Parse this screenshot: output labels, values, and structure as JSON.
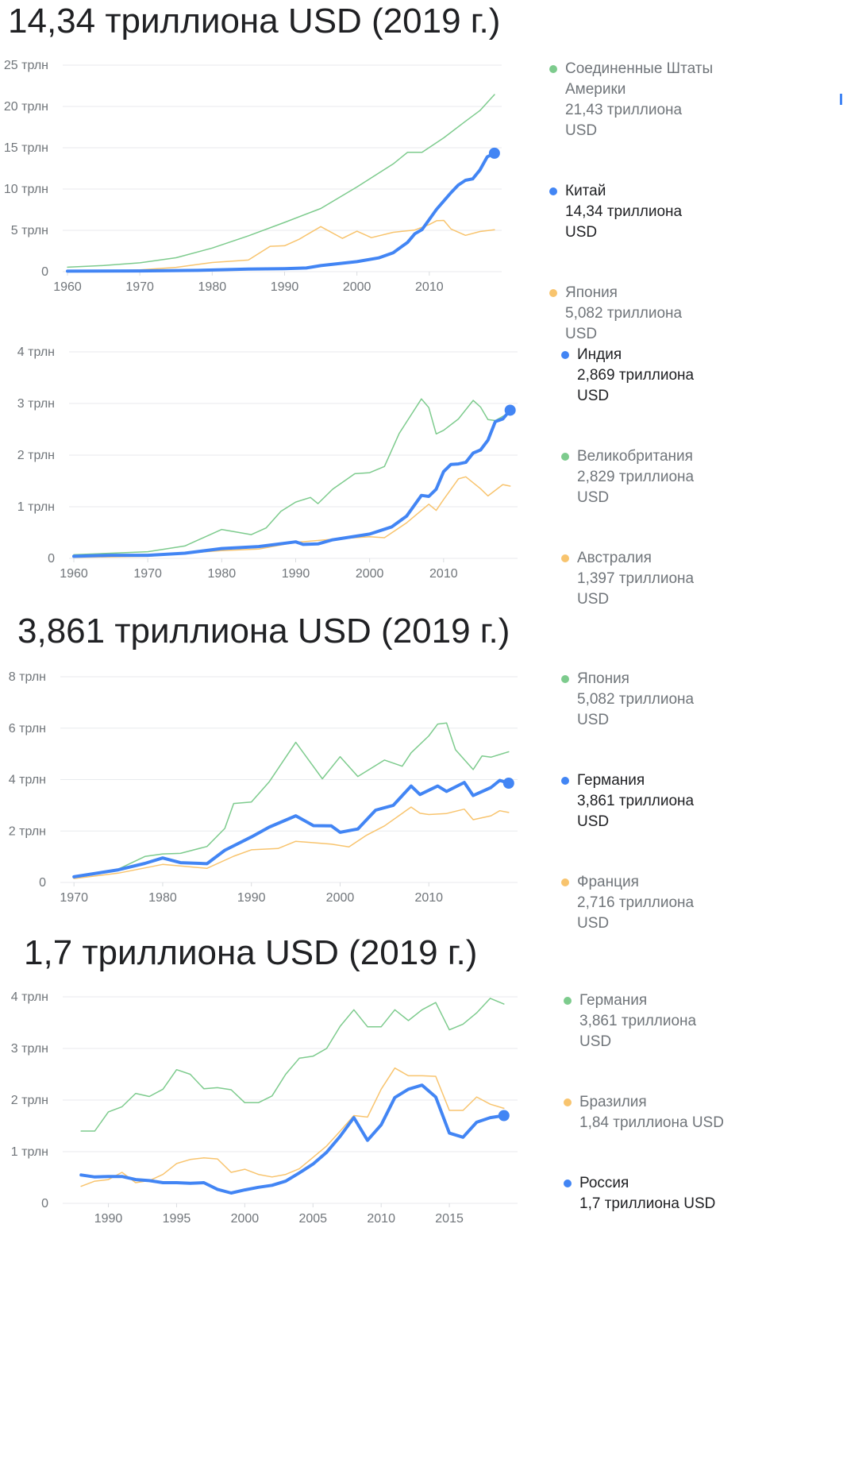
{
  "colors": {
    "blue": "#4285f4",
    "green": "#7dcb8d",
    "orange": "#f8c46e",
    "grid": "#e8eaed",
    "tick": "#70757a"
  },
  "headlines": [
    "14,34 триллиона USD (2019 г.)",
    "",
    "3,861 триллиона USD (2019 г.)",
    "1,7 триллиона USD (2019 г.)"
  ],
  "legends": [
    [
      {
        "name": "Соединенные Штаты Америки",
        "value": "21,43 триллиона USD",
        "color": "green",
        "active": false
      },
      {
        "name": "Китай",
        "value": "14,34 триллиона USD",
        "color": "blue",
        "active": true
      },
      {
        "name": "Япония",
        "value": "5,082 триллиона USD",
        "color": "orange",
        "active": false
      }
    ],
    [
      {
        "name": "Индия",
        "value": "2,869 триллиона USD",
        "color": "blue",
        "active": true
      },
      {
        "name": "Великобритания",
        "value": "2,829 триллиона USD",
        "color": "green",
        "active": false
      },
      {
        "name": "Австралия",
        "value": "1,397 триллиона USD",
        "color": "orange",
        "active": false
      }
    ],
    [
      {
        "name": "Япония",
        "value": "5,082 триллиона USD",
        "color": "green",
        "active": false
      },
      {
        "name": "Германия",
        "value": "3,861 триллиона USD",
        "color": "blue",
        "active": true
      },
      {
        "name": "Франция",
        "value": "2,716 триллиона USD",
        "color": "orange",
        "active": false
      }
    ],
    [
      {
        "name": "Германия",
        "value": "3,861 триллиона USD",
        "color": "green",
        "active": false
      },
      {
        "name": "Бразилия",
        "value": "1,84 триллиона USD",
        "color": "orange",
        "active": false
      },
      {
        "name": "Россия",
        "value": "1,7 триллиона USD",
        "color": "blue",
        "active": true
      }
    ]
  ],
  "chart_data": [
    {
      "type": "line",
      "title": "14,34 триллиона USD (2019 г.)",
      "xlim": [
        1960,
        2020
      ],
      "ylim": [
        0,
        25
      ],
      "x_ticks": [
        1960,
        1970,
        1980,
        1990,
        2000,
        2010
      ],
      "y_ticks": [
        {
          "v": 0,
          "label": "0"
        },
        {
          "v": 5,
          "label": "5 трлн"
        },
        {
          "v": 10,
          "label": "10 трлн"
        },
        {
          "v": 15,
          "label": "15 трлн"
        },
        {
          "v": 20,
          "label": "20 трлн"
        },
        {
          "v": 25,
          "label": "25 трлн"
        }
      ],
      "grid": true,
      "legend": "right",
      "series": [
        {
          "name": "Соединенные Штаты Америки",
          "color": "green",
          "highlight": false,
          "x": [
            1960,
            1965,
            1970,
            1975,
            1980,
            1985,
            1990,
            1995,
            2000,
            2005,
            2007,
            2009,
            2012,
            2015,
            2017,
            2019
          ],
          "y": [
            0.54,
            0.74,
            1.07,
            1.68,
            2.86,
            4.34,
            5.96,
            7.64,
            10.25,
            13.04,
            14.45,
            14.45,
            16.2,
            18.2,
            19.5,
            21.43
          ]
        },
        {
          "name": "Япония",
          "color": "orange",
          "highlight": false,
          "x": [
            1960,
            1965,
            1970,
            1975,
            1980,
            1985,
            1988,
            1990,
            1992,
            1995,
            1998,
            2000,
            2002,
            2005,
            2008,
            2010,
            2011,
            2012,
            2013,
            2015,
            2017,
            2019
          ],
          "y": [
            0.04,
            0.09,
            0.21,
            0.52,
            1.11,
            1.4,
            3.07,
            3.13,
            3.91,
            5.45,
            4.03,
            4.89,
            4.12,
            4.76,
            5.04,
            5.7,
            6.16,
            6.2,
            5.16,
            4.39,
            4.86,
            5.08
          ]
        },
        {
          "name": "Китай",
          "color": "blue",
          "highlight": true,
          "x": [
            1960,
            1970,
            1978,
            1985,
            1990,
            1993,
            1995,
            2000,
            2003,
            2005,
            2007,
            2008,
            2009,
            2011,
            2013,
            2014,
            2015,
            2016,
            2017,
            2018,
            2019
          ],
          "y": [
            0.06,
            0.09,
            0.15,
            0.31,
            0.36,
            0.44,
            0.73,
            1.21,
            1.66,
            2.29,
            3.55,
            4.59,
            5.1,
            7.55,
            9.57,
            10.48,
            11.06,
            11.23,
            12.31,
            13.89,
            14.34
          ]
        }
      ]
    },
    {
      "type": "line",
      "xlim": [
        1960,
        2020
      ],
      "ylim": [
        0,
        4
      ],
      "x_ticks": [
        1960,
        1970,
        1980,
        1990,
        2000,
        2010
      ],
      "y_ticks": [
        {
          "v": 0,
          "label": "0"
        },
        {
          "v": 1,
          "label": "1 трлн"
        },
        {
          "v": 2,
          "label": "2 трлн"
        },
        {
          "v": 3,
          "label": "3 трлн"
        },
        {
          "v": 4,
          "label": "4 трлн"
        }
      ],
      "grid": true,
      "legend": "right",
      "series": [
        {
          "name": "Великобритания",
          "color": "green",
          "highlight": false,
          "x": [
            1960,
            1965,
            1970,
            1975,
            1980,
            1984,
            1986,
            1988,
            1990,
            1992,
            1993,
            1995,
            1998,
            2000,
            2002,
            2004,
            2007,
            2008,
            2009,
            2010,
            2012,
            2014,
            2015,
            2016,
            2017,
            2019
          ],
          "y": [
            0.07,
            0.1,
            0.13,
            0.24,
            0.56,
            0.46,
            0.59,
            0.91,
            1.09,
            1.18,
            1.06,
            1.34,
            1.64,
            1.66,
            1.78,
            2.42,
            3.09,
            2.92,
            2.41,
            2.48,
            2.7,
            3.06,
            2.93,
            2.69,
            2.67,
            2.83
          ]
        },
        {
          "name": "Австралия",
          "color": "orange",
          "highlight": false,
          "x": [
            1960,
            1965,
            1970,
            1975,
            1980,
            1985,
            1990,
            1995,
            2000,
            2002,
            2005,
            2008,
            2009,
            2010,
            2012,
            2013,
            2015,
            2016,
            2018,
            2019
          ],
          "y": [
            0.02,
            0.03,
            0.04,
            0.1,
            0.15,
            0.18,
            0.31,
            0.37,
            0.42,
            0.4,
            0.69,
            1.05,
            0.93,
            1.14,
            1.54,
            1.58,
            1.35,
            1.21,
            1.43,
            1.4
          ]
        },
        {
          "name": "Индия",
          "color": "blue",
          "highlight": true,
          "x": [
            1960,
            1965,
            1970,
            1975,
            1980,
            1985,
            1990,
            1991,
            1993,
            1995,
            2000,
            2003,
            2005,
            2007,
            2008,
            2009,
            2010,
            2011,
            2012,
            2013,
            2014,
            2015,
            2016,
            2017,
            2018,
            2019
          ],
          "y": [
            0.04,
            0.06,
            0.06,
            0.1,
            0.19,
            0.23,
            0.32,
            0.27,
            0.28,
            0.36,
            0.47,
            0.61,
            0.82,
            1.22,
            1.2,
            1.34,
            1.68,
            1.82,
            1.83,
            1.86,
            2.04,
            2.1,
            2.29,
            2.65,
            2.7,
            2.87
          ]
        }
      ]
    },
    {
      "type": "line",
      "title": "3,861 триллиона USD (2019 г.)",
      "xlim": [
        1969,
        2020
      ],
      "ylim": [
        0,
        8
      ],
      "x_ticks": [
        1970,
        1980,
        1990,
        2000,
        2010
      ],
      "y_ticks": [
        {
          "v": 0,
          "label": "0"
        },
        {
          "v": 2,
          "label": "2 трлн"
        },
        {
          "v": 4,
          "label": "4 трлн"
        },
        {
          "v": 6,
          "label": "6 трлн"
        },
        {
          "v": 8,
          "label": "8 трлн"
        }
      ],
      "grid": true,
      "legend": "right",
      "series": [
        {
          "name": "Япония",
          "color": "green",
          "highlight": false,
          "x": [
            1970,
            1975,
            1978,
            1980,
            1982,
            1985,
            1987,
            1988,
            1990,
            1992,
            1995,
            1998,
            2000,
            2002,
            2005,
            2007,
            2008,
            2010,
            2011,
            2012,
            2013,
            2015,
            2016,
            2017,
            2019
          ],
          "y": [
            0.21,
            0.52,
            1.01,
            1.11,
            1.13,
            1.4,
            2.1,
            3.07,
            3.13,
            3.91,
            5.45,
            4.03,
            4.89,
            4.12,
            4.76,
            4.52,
            5.04,
            5.7,
            6.16,
            6.2,
            5.16,
            4.39,
            4.92,
            4.87,
            5.08
          ]
        },
        {
          "name": "Франция",
          "color": "orange",
          "highlight": false,
          "x": [
            1970,
            1975,
            1980,
            1985,
            1988,
            1990,
            1993,
            1995,
            1999,
            2001,
            2003,
            2005,
            2008,
            2009,
            2010,
            2012,
            2014,
            2015,
            2017,
            2018,
            2019
          ],
          "y": [
            0.15,
            0.36,
            0.7,
            0.55,
            1.02,
            1.27,
            1.32,
            1.6,
            1.49,
            1.38,
            1.84,
            2.2,
            2.93,
            2.69,
            2.64,
            2.68,
            2.85,
            2.44,
            2.59,
            2.79,
            2.72
          ]
        },
        {
          "name": "Германия",
          "color": "blue",
          "highlight": true,
          "x": [
            1970,
            1975,
            1978,
            1980,
            1982,
            1985,
            1987,
            1990,
            1992,
            1995,
            1997,
            1999,
            2000,
            2002,
            2004,
            2006,
            2008,
            2009,
            2011,
            2012,
            2014,
            2015,
            2017,
            2018,
            2019
          ],
          "y": [
            0.22,
            0.49,
            0.74,
            0.95,
            0.77,
            0.73,
            1.25,
            1.77,
            2.15,
            2.59,
            2.21,
            2.2,
            1.95,
            2.08,
            2.81,
            3.0,
            3.75,
            3.42,
            3.75,
            3.54,
            3.89,
            3.38,
            3.69,
            3.97,
            3.86
          ]
        }
      ]
    },
    {
      "type": "line",
      "title": "1,7 триллиона USD (2019 г.)",
      "xlim": [
        1987,
        2020
      ],
      "ylim": [
        0,
        4
      ],
      "x_ticks": [
        1990,
        1995,
        2000,
        2005,
        2010,
        2015
      ],
      "y_ticks": [
        {
          "v": 0,
          "label": "0"
        },
        {
          "v": 1,
          "label": "1 трлн"
        },
        {
          "v": 2,
          "label": "2 трлн"
        },
        {
          "v": 3,
          "label": "3 трлн"
        },
        {
          "v": 4,
          "label": "4 трлн"
        }
      ],
      "grid": true,
      "legend": "right",
      "series": [
        {
          "name": "Германия",
          "color": "green",
          "highlight": false,
          "x": [
            1988,
            1989,
            1990,
            1991,
            1992,
            1993,
            1994,
            1995,
            1996,
            1997,
            1998,
            1999,
            2000,
            2001,
            2002,
            2003,
            2004,
            2005,
            2006,
            2007,
            2008,
            2009,
            2010,
            2011,
            2012,
            2013,
            2014,
            2015,
            2016,
            2017,
            2018,
            2019
          ],
          "y": [
            1.4,
            1.4,
            1.77,
            1.87,
            2.13,
            2.07,
            2.21,
            2.59,
            2.5,
            2.22,
            2.24,
            2.2,
            1.95,
            1.95,
            2.08,
            2.5,
            2.81,
            2.85,
            3.0,
            3.43,
            3.75,
            3.42,
            3.42,
            3.75,
            3.54,
            3.75,
            3.89,
            3.36,
            3.47,
            3.69,
            3.97,
            3.86
          ]
        },
        {
          "name": "Бразилия",
          "color": "orange",
          "highlight": false,
          "x": [
            1988,
            1989,
            1990,
            1991,
            1992,
            1993,
            1994,
            1995,
            1996,
            1997,
            1998,
            1999,
            2000,
            2001,
            2002,
            2003,
            2004,
            2005,
            2006,
            2007,
            2008,
            2009,
            2010,
            2011,
            2012,
            2013,
            2014,
            2015,
            2016,
            2017,
            2018,
            2019
          ],
          "y": [
            0.33,
            0.43,
            0.46,
            0.6,
            0.4,
            0.44,
            0.56,
            0.77,
            0.85,
            0.88,
            0.86,
            0.6,
            0.66,
            0.56,
            0.51,
            0.56,
            0.67,
            0.89,
            1.11,
            1.4,
            1.7,
            1.67,
            2.21,
            2.62,
            2.47,
            2.47,
            2.46,
            1.8,
            1.8,
            2.06,
            1.92,
            1.84
          ]
        },
        {
          "name": "Россия",
          "color": "blue",
          "highlight": true,
          "x": [
            1988,
            1989,
            1990,
            1991,
            1992,
            1993,
            1994,
            1995,
            1996,
            1997,
            1998,
            1999,
            2000,
            2001,
            2002,
            2003,
            2004,
            2005,
            2006,
            2007,
            2008,
            2009,
            2010,
            2011,
            2012,
            2013,
            2014,
            2015,
            2016,
            2017,
            2018,
            2019
          ],
          "y": [
            0.55,
            0.51,
            0.52,
            0.52,
            0.46,
            0.44,
            0.4,
            0.4,
            0.39,
            0.4,
            0.27,
            0.2,
            0.26,
            0.31,
            0.35,
            0.43,
            0.59,
            0.76,
            0.99,
            1.3,
            1.66,
            1.22,
            1.52,
            2.05,
            2.21,
            2.29,
            2.06,
            1.36,
            1.28,
            1.57,
            1.66,
            1.7
          ]
        }
      ]
    }
  ]
}
